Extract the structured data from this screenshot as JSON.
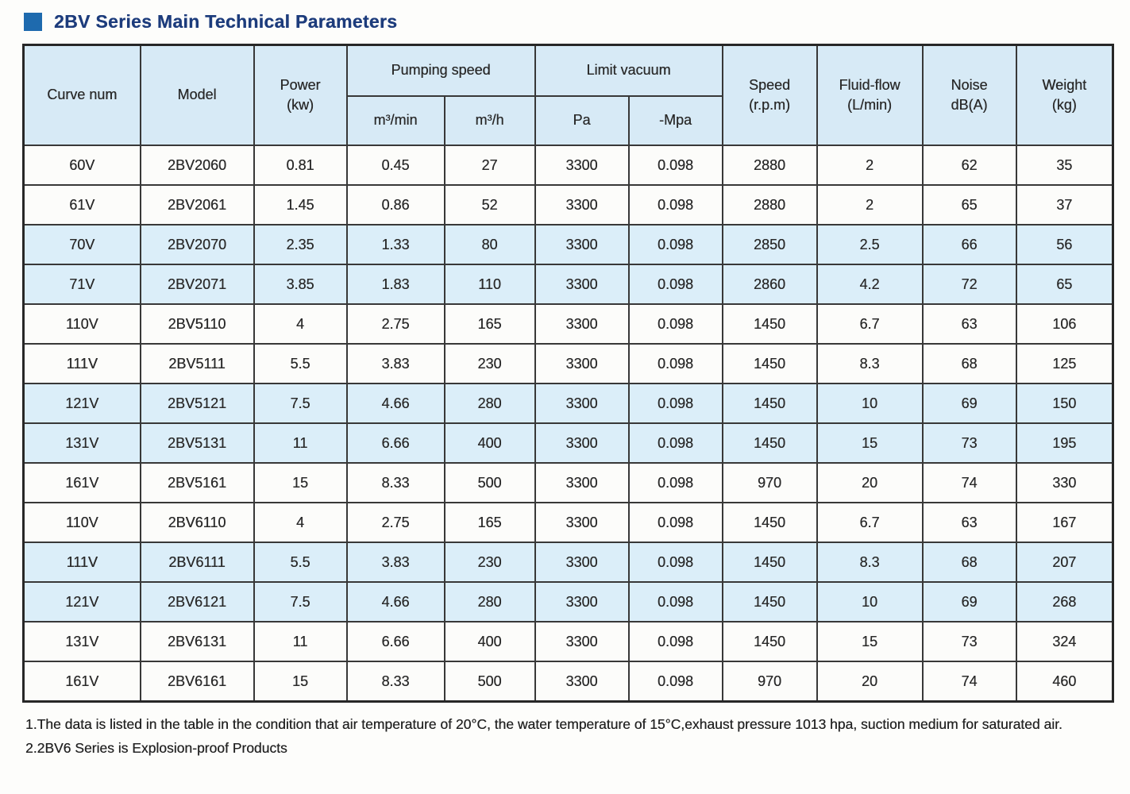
{
  "page": {
    "title": "2BV Series Main Technical Parameters"
  },
  "colors": {
    "title_text": "#1d3c7c",
    "title_square": "#1e6aae",
    "header_fill": "#d7eaf6",
    "stripe_fill": "#dbeef9",
    "border": "#383838"
  },
  "table": {
    "header": {
      "curve_num": "Curve num",
      "model": "Model",
      "power": "Power\n(kw)",
      "pumping_speed": "Pumping speed",
      "m3_min": "m³/min",
      "m3_h": "m³/h",
      "limit_vacuum": "Limit vacuum",
      "pa": "Pa",
      "mpa": "-Mpa",
      "speed": "Speed\n(r.p.m)",
      "fluid_flow": "Fluid-flow\n(L/min)",
      "noise": "Noise\ndB(A)",
      "weight": "Weight\n(kg)"
    },
    "rows": [
      {
        "shaded": false,
        "cells": [
          "60V",
          "2BV2060",
          "0.81",
          "0.45",
          "27",
          "3300",
          "0.098",
          "2880",
          "2",
          "62",
          "35"
        ]
      },
      {
        "shaded": false,
        "cells": [
          "61V",
          "2BV2061",
          "1.45",
          "0.86",
          "52",
          "3300",
          "0.098",
          "2880",
          "2",
          "65",
          "37"
        ]
      },
      {
        "shaded": true,
        "cells": [
          "70V",
          "2BV2070",
          "2.35",
          "1.33",
          "80",
          "3300",
          "0.098",
          "2850",
          "2.5",
          "66",
          "56"
        ]
      },
      {
        "shaded": true,
        "cells": [
          "71V",
          "2BV2071",
          "3.85",
          "1.83",
          "110",
          "3300",
          "0.098",
          "2860",
          "4.2",
          "72",
          "65"
        ]
      },
      {
        "shaded": false,
        "cells": [
          "110V",
          "2BV5110",
          "4",
          "2.75",
          "165",
          "3300",
          "0.098",
          "1450",
          "6.7",
          "63",
          "106"
        ]
      },
      {
        "shaded": false,
        "cells": [
          "111V",
          "2BV5111",
          "5.5",
          "3.83",
          "230",
          "3300",
          "0.098",
          "1450",
          "8.3",
          "68",
          "125"
        ]
      },
      {
        "shaded": true,
        "cells": [
          "121V",
          "2BV5121",
          "7.5",
          "4.66",
          "280",
          "3300",
          "0.098",
          "1450",
          "10",
          "69",
          "150"
        ]
      },
      {
        "shaded": true,
        "cells": [
          "131V",
          "2BV5131",
          "11",
          "6.66",
          "400",
          "3300",
          "0.098",
          "1450",
          "15",
          "73",
          "195"
        ]
      },
      {
        "shaded": false,
        "cells": [
          "161V",
          "2BV5161",
          "15",
          "8.33",
          "500",
          "3300",
          "0.098",
          "970",
          "20",
          "74",
          "330"
        ]
      },
      {
        "shaded": false,
        "cells": [
          "110V",
          "2BV6110",
          "4",
          "2.75",
          "165",
          "3300",
          "0.098",
          "1450",
          "6.7",
          "63",
          "167"
        ]
      },
      {
        "shaded": true,
        "cells": [
          "111V",
          "2BV6111",
          "5.5",
          "3.83",
          "230",
          "3300",
          "0.098",
          "1450",
          "8.3",
          "68",
          "207"
        ]
      },
      {
        "shaded": true,
        "cells": [
          "121V",
          "2BV6121",
          "7.5",
          "4.66",
          "280",
          "3300",
          "0.098",
          "1450",
          "10",
          "69",
          "268"
        ]
      },
      {
        "shaded": false,
        "cells": [
          "131V",
          "2BV6131",
          "11",
          "6.66",
          "400",
          "3300",
          "0.098",
          "1450",
          "15",
          "73",
          "324"
        ]
      },
      {
        "shaded": false,
        "cells": [
          "161V",
          "2BV6161",
          "15",
          "8.33",
          "500",
          "3300",
          "0.098",
          "970",
          "20",
          "74",
          "460"
        ]
      }
    ]
  },
  "notes": [
    "1.The data is listed in the table in the condition that air temperature of 20°C, the water temperature of 15°C,exhaust pressure 1013 hpa, suction medium for saturated air.",
    "2.2BV6 Series is Explosion-proof Products"
  ]
}
